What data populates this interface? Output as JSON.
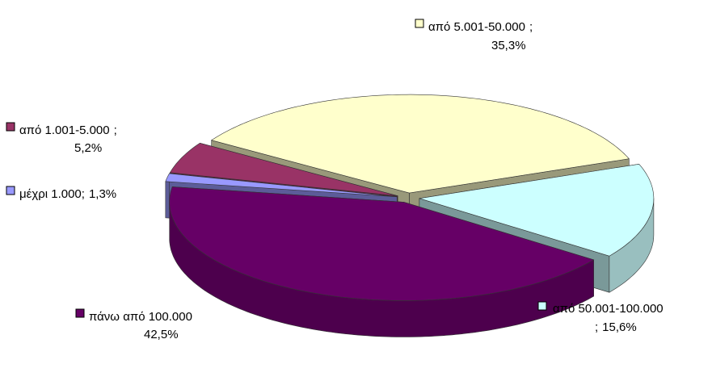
{
  "chart_data": {
    "type": "pie3d",
    "categories": [
      "μέχρι 1.000",
      "από 1.001-5.000",
      "από 5.001-50.000",
      "από 50.001-100.000",
      "πάνω από 100.000"
    ],
    "values": [
      1.3,
      5.2,
      35.3,
      15.6,
      42.5
    ],
    "value_labels": [
      "1,3%",
      "5,2%",
      "35,3%",
      "15,6%",
      "42,5%"
    ],
    "separator": ";",
    "colors": [
      "#9999ff",
      "#993366",
      "#ffffcc",
      "#ccffff",
      "#660066"
    ]
  }
}
